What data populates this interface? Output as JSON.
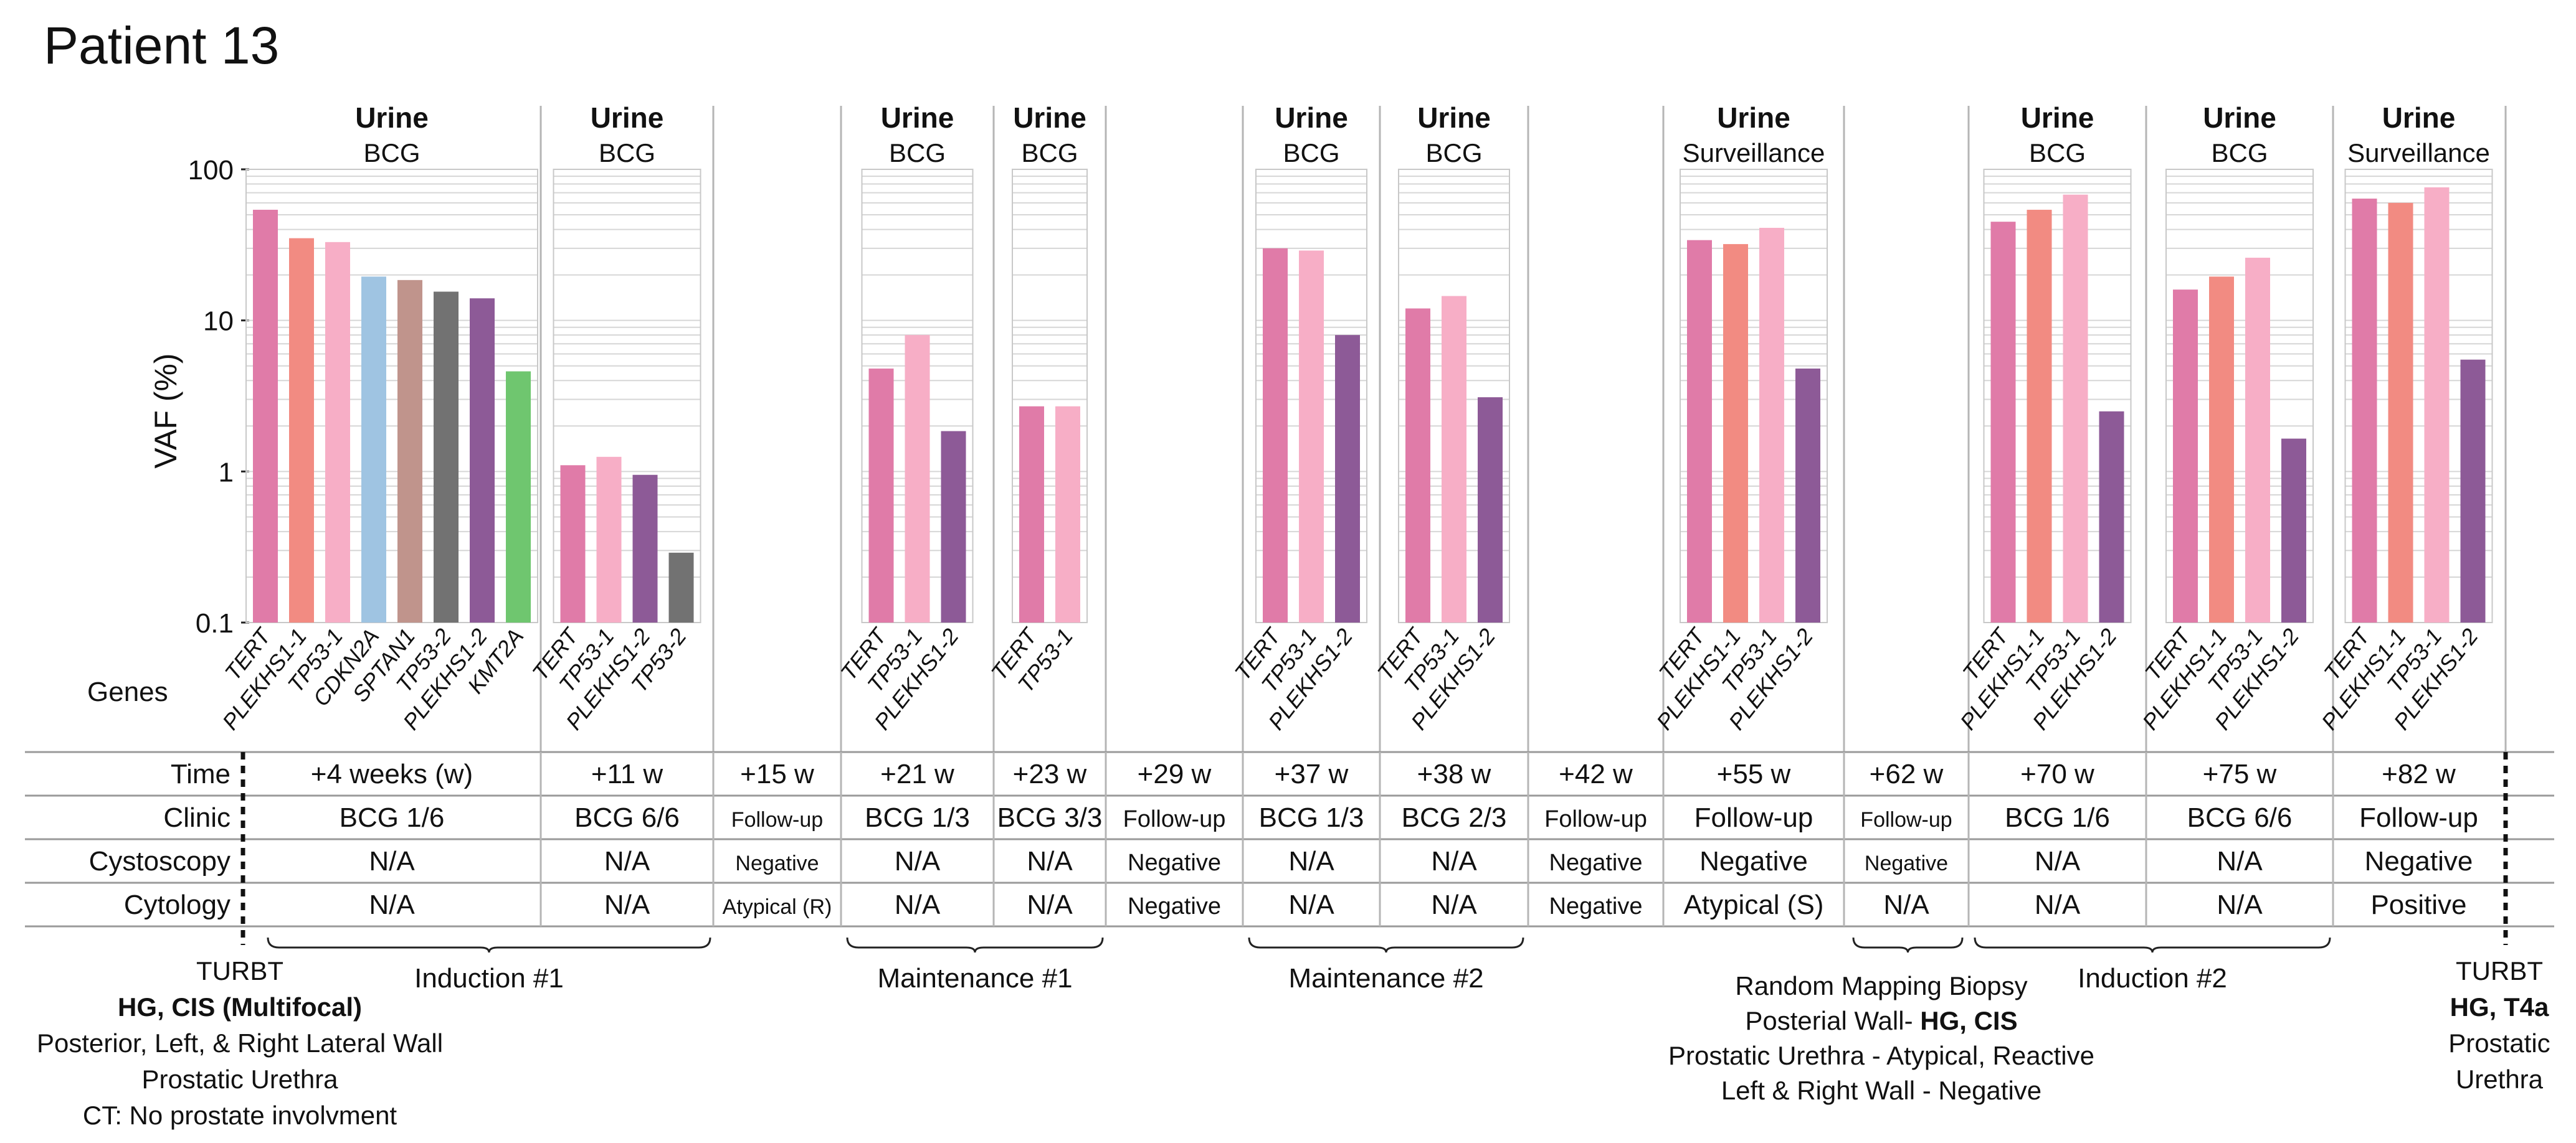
{
  "title": "Patient 13",
  "chart_data": {
    "type": "bar",
    "ylabel": "VAF (%)",
    "yscale": "log",
    "ylim": [
      0.1,
      100
    ],
    "yticks": [
      "100",
      "10",
      "1",
      "0.1"
    ],
    "genes_label": "Genes",
    "colors": {
      "TERT": "#e07ba8",
      "PLEKHS1-1": "#f28b82",
      "TP53-1": "#f7aec6",
      "CDKN2A": "#9fc4e2",
      "SPTAN1": "#c0948c",
      "TP53-2": "#727272",
      "PLEKHS1-2": "#8d5a97",
      "KMT2A": "#6fc66f"
    },
    "panels": [
      {
        "title": "Urine",
        "subtitle": "BCG",
        "genes": [
          "TERT",
          "PLEKHS1-1",
          "TP53-1",
          "CDKN2A",
          "SPTAN1",
          "TP53-2",
          "PLEKHS1-2",
          "KMT2A"
        ],
        "values": [
          54,
          35,
          33,
          19.5,
          18.5,
          15.5,
          14,
          4.6
        ]
      },
      {
        "title": "Urine",
        "subtitle": "BCG",
        "genes": [
          "TERT",
          "TP53-1",
          "PLEKHS1-2",
          "TP53-2"
        ],
        "values": [
          1.1,
          1.25,
          0.95,
          0.29
        ]
      },
      {
        "title": "Urine",
        "subtitle": "BCG",
        "genes": [
          "TERT",
          "TP53-1",
          "PLEKHS1-2"
        ],
        "values": [
          4.8,
          8.0,
          1.85
        ]
      },
      {
        "title": "Urine",
        "subtitle": "BCG",
        "genes": [
          "TERT",
          "TP53-1"
        ],
        "values": [
          2.7,
          2.7
        ]
      },
      {
        "title": "Urine",
        "subtitle": "BCG",
        "genes": [
          "TERT",
          "TP53-1",
          "PLEKHS1-2"
        ],
        "values": [
          30,
          29,
          8.0
        ]
      },
      {
        "title": "Urine",
        "subtitle": "BCG",
        "genes": [
          "TERT",
          "TP53-1",
          "PLEKHS1-2"
        ],
        "values": [
          12,
          14.5,
          3.1
        ]
      },
      {
        "title": "Urine",
        "subtitle": "Surveillance",
        "genes": [
          "TERT",
          "PLEKHS1-1",
          "TP53-1",
          "PLEKHS1-2"
        ],
        "values": [
          34,
          32,
          41,
          4.8
        ]
      },
      {
        "title": "Urine",
        "subtitle": "BCG",
        "genes": [
          "TERT",
          "PLEKHS1-1",
          "TP53-1",
          "PLEKHS1-2"
        ],
        "values": [
          45,
          54,
          68,
          2.5
        ]
      },
      {
        "title": "Urine",
        "subtitle": "BCG",
        "genes": [
          "TERT",
          "PLEKHS1-1",
          "TP53-1",
          "PLEKHS1-2"
        ],
        "values": [
          16,
          19.5,
          26,
          1.65
        ]
      },
      {
        "title": "Urine",
        "subtitle": "Surveillance",
        "genes": [
          "TERT",
          "PLEKHS1-1",
          "TP53-1",
          "PLEKHS1-2"
        ],
        "values": [
          64,
          60,
          76,
          5.5
        ]
      }
    ]
  },
  "table": {
    "row_labels": [
      "Time",
      "Clinic",
      "Cystoscopy",
      "Cytology"
    ],
    "columns": [
      {
        "time": "+4 weeks (w)",
        "clinic": "BCG 1/6",
        "cystoscopy": "N/A",
        "cytology": "N/A"
      },
      {
        "time": "+11 w",
        "clinic": "BCG 6/6",
        "cystoscopy": "N/A",
        "cytology": "N/A"
      },
      {
        "time": "+15 w",
        "clinic": "Follow-up",
        "cystoscopy": "Negative",
        "cytology": "Atypical (R)"
      },
      {
        "time": "+21 w",
        "clinic": "BCG 1/3",
        "cystoscopy": "N/A",
        "cytology": "N/A"
      },
      {
        "time": "+23 w",
        "clinic": "BCG 3/3",
        "cystoscopy": "N/A",
        "cytology": "N/A"
      },
      {
        "time": "+29 w",
        "clinic": "Follow-up",
        "cystoscopy": "Negative",
        "cytology": "Negative"
      },
      {
        "time": "+37 w",
        "clinic": "BCG 1/3",
        "cystoscopy": "N/A",
        "cytology": "N/A"
      },
      {
        "time": "+38 w",
        "clinic": "BCG 2/3",
        "cystoscopy": "N/A",
        "cytology": "N/A"
      },
      {
        "time": "+42 w",
        "clinic": "Follow-up",
        "cystoscopy": "Negative",
        "cytology": "Negative"
      },
      {
        "time": "+55 w",
        "clinic": "Follow-up",
        "cystoscopy": "Negative",
        "cytology": "Atypical (S)"
      },
      {
        "time": "+62 w",
        "clinic": "Follow-up",
        "cystoscopy": "Negative",
        "cytology": "N/A"
      },
      {
        "time": "+70 w",
        "clinic": "BCG 1/6",
        "cystoscopy": "N/A",
        "cytology": "N/A"
      },
      {
        "time": "+75 w",
        "clinic": "BCG 6/6",
        "cystoscopy": "N/A",
        "cytology": "N/A"
      },
      {
        "time": "+82 w",
        "clinic": "Follow-up",
        "cystoscopy": "Negative",
        "cytology": "Positive"
      }
    ]
  },
  "phases": [
    "Induction #1",
    "Maintenance #1",
    "Maintenance #2",
    "Induction #2"
  ],
  "left_note": {
    "title": "TURBT",
    "bold": "HG, CIS (Multifocal)",
    "lines": [
      "Posterior, Left, & Right Lateral Wall",
      "Prostatic Urethra",
      "CT: No prostate involvment"
    ]
  },
  "right_note": {
    "title": "TURBT",
    "bold": "HG, T4a",
    "lines": [
      "Prostatic",
      "Urethra"
    ]
  },
  "biopsy_note": {
    "line1": "Random Mapping Biopsy",
    "line2_prefix": "Posterial Wall- ",
    "line2_bold": "HG, CIS",
    "lines": [
      "Prostatic Urethra - Atypical, Reactive",
      "Left & Right Wall - Negative"
    ]
  }
}
